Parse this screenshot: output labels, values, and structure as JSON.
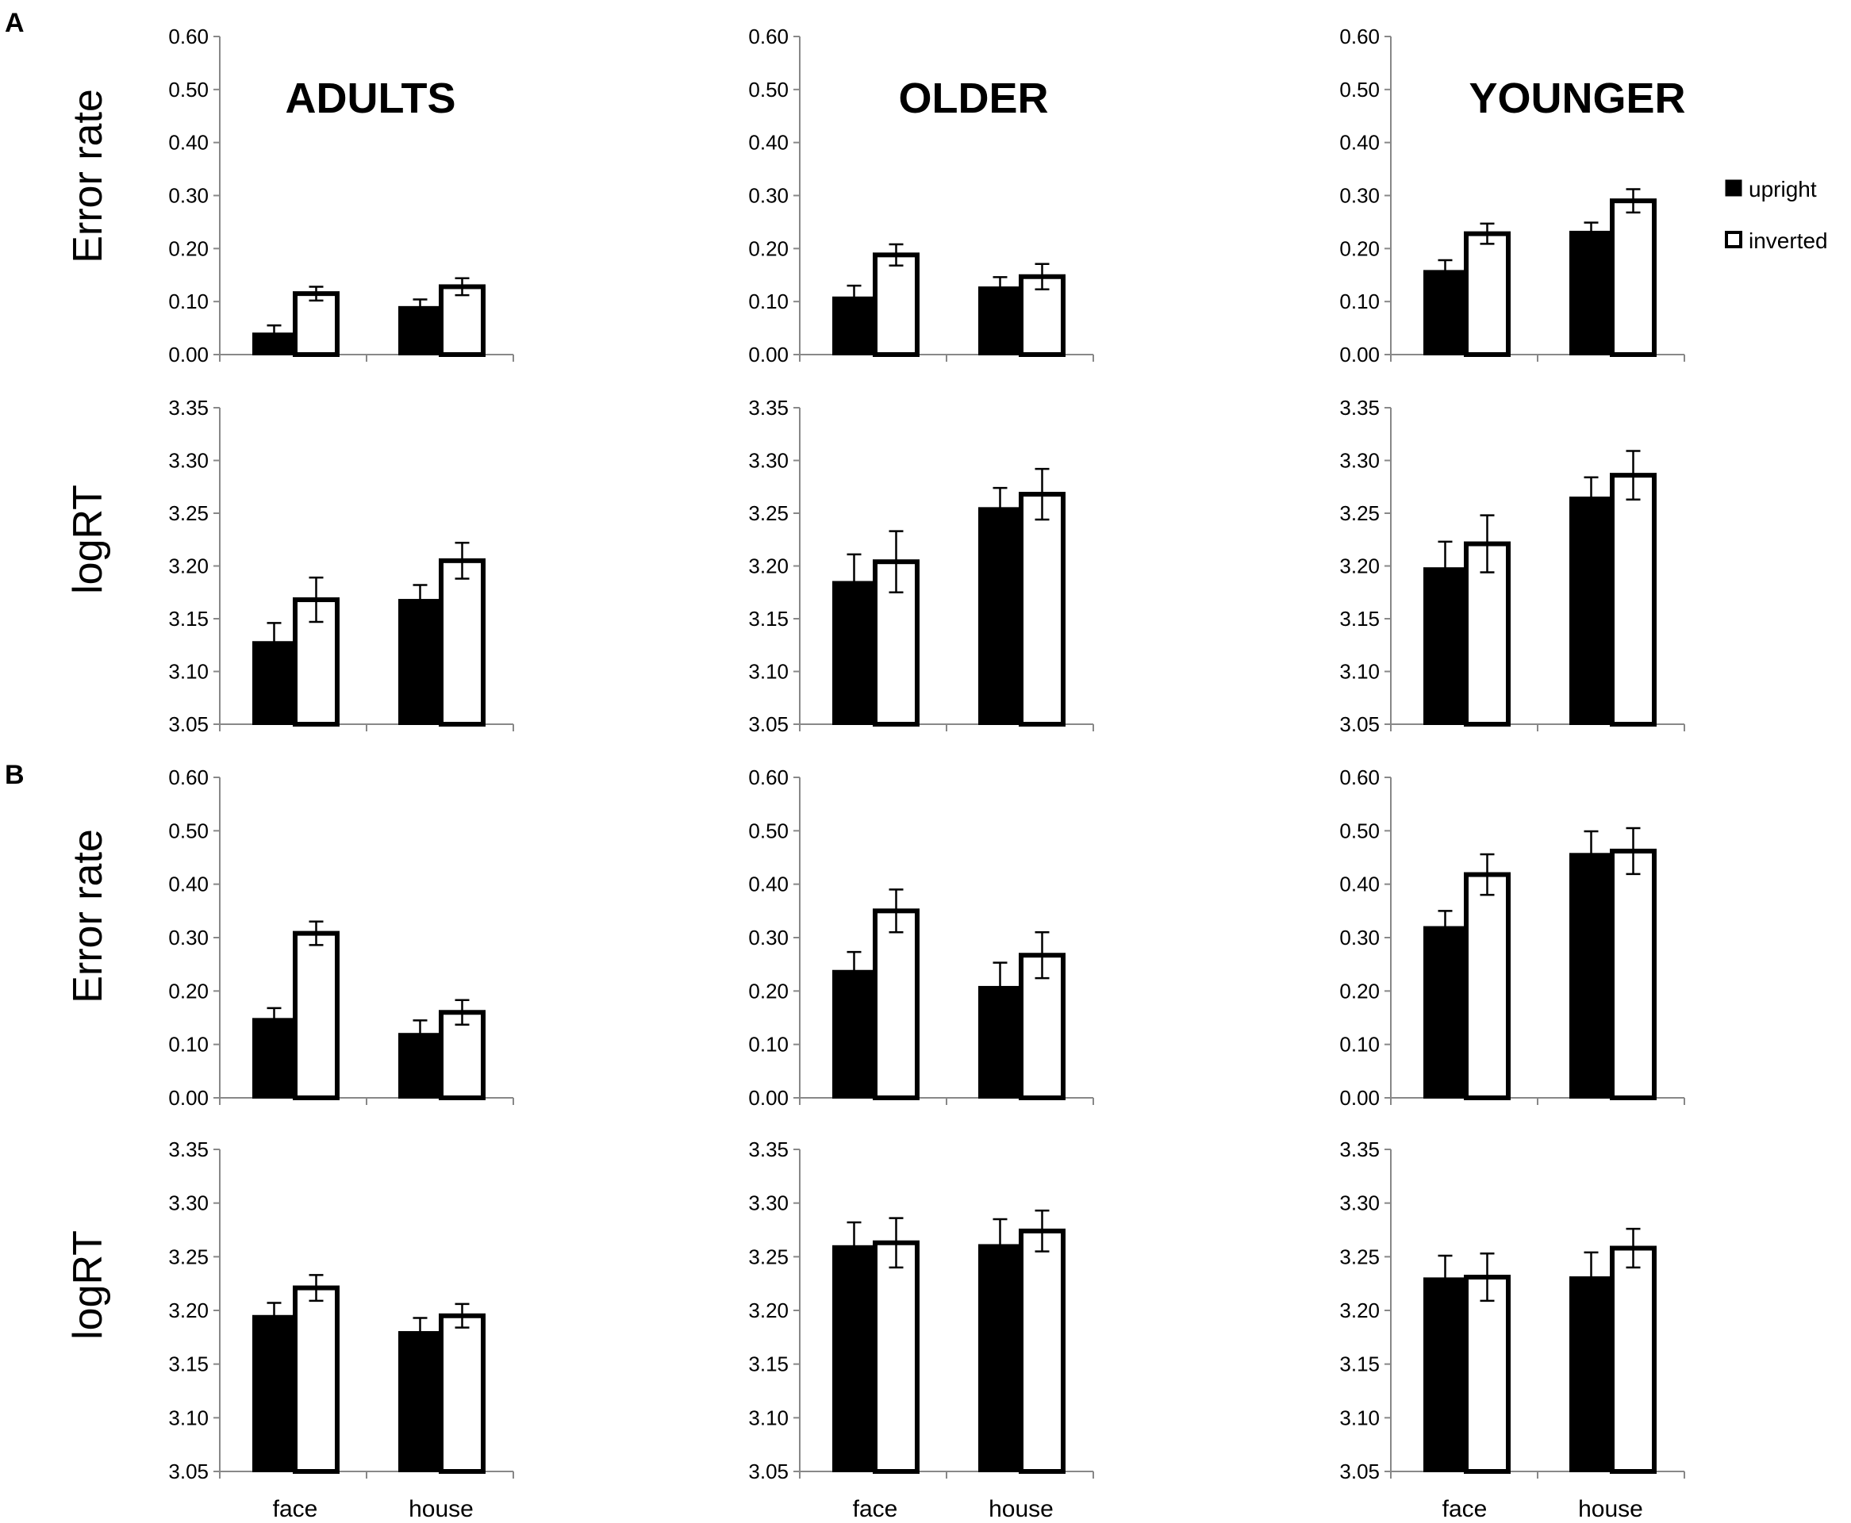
{
  "figure": {
    "panel_letters": [
      "A",
      "B"
    ],
    "group_titles": [
      "ADULTS",
      "OLDER",
      "YOUNGER"
    ],
    "row_ylabels": [
      "Error rate",
      "logRT",
      "Error rate",
      "logRT"
    ],
    "categories": [
      "face",
      "house"
    ],
    "legend": {
      "upright": "upright",
      "inverted": "inverted"
    }
  },
  "colors": {
    "upright": "#000000",
    "inverted": "#ffffff",
    "axis": "#888888",
    "stroke": "#000000"
  },
  "chart_data": [
    {
      "type": "bar",
      "panel": "A",
      "group": "ADULTS",
      "ylabel": "Error rate",
      "ylim": [
        0,
        0.6
      ],
      "yticks": [
        "0.00",
        "0.10",
        "0.20",
        "0.30",
        "0.40",
        "0.50",
        "0.60"
      ],
      "categories": [
        "face",
        "house"
      ],
      "series": [
        {
          "name": "upright",
          "values": [
            0.04,
            0.09
          ],
          "errors": [
            0.015,
            0.014
          ]
        },
        {
          "name": "inverted",
          "values": [
            0.115,
            0.128
          ],
          "errors": [
            0.013,
            0.016
          ]
        }
      ]
    },
    {
      "type": "bar",
      "panel": "A",
      "group": "OLDER",
      "ylabel": "Error rate",
      "ylim": [
        0,
        0.6
      ],
      "yticks": [
        "0.00",
        "0.10",
        "0.20",
        "0.30",
        "0.40",
        "0.50",
        "0.60"
      ],
      "categories": [
        "face",
        "house"
      ],
      "series": [
        {
          "name": "upright",
          "values": [
            0.108,
            0.127
          ],
          "errors": [
            0.022,
            0.019
          ]
        },
        {
          "name": "inverted",
          "values": [
            0.188,
            0.147
          ],
          "errors": [
            0.02,
            0.024
          ]
        }
      ]
    },
    {
      "type": "bar",
      "panel": "A",
      "group": "YOUNGER",
      "ylabel": "Error rate",
      "ylim": [
        0,
        0.6
      ],
      "yticks": [
        "0.00",
        "0.10",
        "0.20",
        "0.30",
        "0.40",
        "0.50",
        "0.60"
      ],
      "categories": [
        "face",
        "house"
      ],
      "series": [
        {
          "name": "upright",
          "values": [
            0.158,
            0.232
          ],
          "errors": [
            0.02,
            0.017
          ]
        },
        {
          "name": "inverted",
          "values": [
            0.228,
            0.29
          ],
          "errors": [
            0.019,
            0.022
          ]
        }
      ]
    },
    {
      "type": "bar",
      "panel": "A",
      "group": "ADULTS",
      "ylabel": "logRT",
      "ylim": [
        3.05,
        3.35
      ],
      "yticks": [
        "3.05",
        "3.10",
        "3.15",
        "3.20",
        "3.25",
        "3.30",
        "3.35"
      ],
      "categories": [
        "face",
        "house"
      ],
      "series": [
        {
          "name": "upright",
          "values": [
            3.128,
            3.168
          ],
          "errors": [
            0.018,
            0.014
          ]
        },
        {
          "name": "inverted",
          "values": [
            3.168,
            3.205
          ],
          "errors": [
            0.021,
            0.017
          ]
        }
      ]
    },
    {
      "type": "bar",
      "panel": "A",
      "group": "OLDER",
      "ylabel": "logRT",
      "ylim": [
        3.05,
        3.35
      ],
      "yticks": [
        "3.05",
        "3.10",
        "3.15",
        "3.20",
        "3.25",
        "3.30",
        "3.35"
      ],
      "categories": [
        "face",
        "house"
      ],
      "series": [
        {
          "name": "upright",
          "values": [
            3.185,
            3.255
          ],
          "errors": [
            0.026,
            0.019
          ]
        },
        {
          "name": "inverted",
          "values": [
            3.204,
            3.268
          ],
          "errors": [
            0.029,
            0.024
          ]
        }
      ]
    },
    {
      "type": "bar",
      "panel": "A",
      "group": "YOUNGER",
      "ylabel": "logRT",
      "ylim": [
        3.05,
        3.35
      ],
      "yticks": [
        "3.05",
        "3.10",
        "3.15",
        "3.20",
        "3.25",
        "3.30",
        "3.35"
      ],
      "categories": [
        "face",
        "house"
      ],
      "series": [
        {
          "name": "upright",
          "values": [
            3.198,
            3.265
          ],
          "errors": [
            0.025,
            0.019
          ]
        },
        {
          "name": "inverted",
          "values": [
            3.221,
            3.286
          ],
          "errors": [
            0.027,
            0.023
          ]
        }
      ]
    },
    {
      "type": "bar",
      "panel": "B",
      "group": "ADULTS",
      "ylabel": "Error rate",
      "ylim": [
        0,
        0.6
      ],
      "yticks": [
        "0.00",
        "0.10",
        "0.20",
        "0.30",
        "0.40",
        "0.50",
        "0.60"
      ],
      "categories": [
        "face",
        "house"
      ],
      "series": [
        {
          "name": "upright",
          "values": [
            0.148,
            0.12
          ],
          "errors": [
            0.02,
            0.025
          ]
        },
        {
          "name": "inverted",
          "values": [
            0.308,
            0.16
          ],
          "errors": [
            0.022,
            0.023
          ]
        }
      ]
    },
    {
      "type": "bar",
      "panel": "B",
      "group": "OLDER",
      "ylabel": "Error rate",
      "ylim": [
        0,
        0.6
      ],
      "yticks": [
        "0.00",
        "0.10",
        "0.20",
        "0.30",
        "0.40",
        "0.50",
        "0.60"
      ],
      "categories": [
        "face",
        "house"
      ],
      "series": [
        {
          "name": "upright",
          "values": [
            0.238,
            0.208
          ],
          "errors": [
            0.035,
            0.045
          ]
        },
        {
          "name": "inverted",
          "values": [
            0.35,
            0.267
          ],
          "errors": [
            0.04,
            0.043
          ]
        }
      ]
    },
    {
      "type": "bar",
      "panel": "B",
      "group": "YOUNGER",
      "ylabel": "Error rate",
      "ylim": [
        0,
        0.6
      ],
      "yticks": [
        "0.00",
        "0.10",
        "0.20",
        "0.30",
        "0.40",
        "0.50",
        "0.60"
      ],
      "categories": [
        "face",
        "house"
      ],
      "series": [
        {
          "name": "upright",
          "values": [
            0.32,
            0.457
          ],
          "errors": [
            0.03,
            0.042
          ]
        },
        {
          "name": "inverted",
          "values": [
            0.418,
            0.462
          ],
          "errors": [
            0.038,
            0.043
          ]
        }
      ]
    },
    {
      "type": "bar",
      "panel": "B",
      "group": "ADULTS",
      "ylabel": "logRT",
      "ylim": [
        3.05,
        3.35
      ],
      "yticks": [
        "3.05",
        "3.10",
        "3.15",
        "3.20",
        "3.25",
        "3.30",
        "3.35"
      ],
      "categories": [
        "face",
        "house"
      ],
      "series": [
        {
          "name": "upright",
          "values": [
            3.195,
            3.18
          ],
          "errors": [
            0.012,
            0.013
          ]
        },
        {
          "name": "inverted",
          "values": [
            3.221,
            3.195
          ],
          "errors": [
            0.012,
            0.011
          ]
        }
      ]
    },
    {
      "type": "bar",
      "panel": "B",
      "group": "OLDER",
      "ylabel": "logRT",
      "ylim": [
        3.05,
        3.35
      ],
      "yticks": [
        "3.05",
        "3.10",
        "3.15",
        "3.20",
        "3.25",
        "3.30",
        "3.35"
      ],
      "categories": [
        "face",
        "house"
      ],
      "series": [
        {
          "name": "upright",
          "values": [
            3.26,
            3.261
          ],
          "errors": [
            0.022,
            0.024
          ]
        },
        {
          "name": "inverted",
          "values": [
            3.263,
            3.274
          ],
          "errors": [
            0.023,
            0.019
          ]
        }
      ]
    },
    {
      "type": "bar",
      "panel": "B",
      "group": "YOUNGER",
      "ylabel": "logRT",
      "ylim": [
        3.05,
        3.35
      ],
      "yticks": [
        "3.05",
        "3.10",
        "3.15",
        "3.20",
        "3.25",
        "3.30",
        "3.35"
      ],
      "categories": [
        "face",
        "house"
      ],
      "series": [
        {
          "name": "upright",
          "values": [
            3.23,
            3.231
          ],
          "errors": [
            0.021,
            0.023
          ]
        },
        {
          "name": "inverted",
          "values": [
            3.231,
            3.258
          ],
          "errors": [
            0.022,
            0.018
          ]
        }
      ]
    }
  ]
}
